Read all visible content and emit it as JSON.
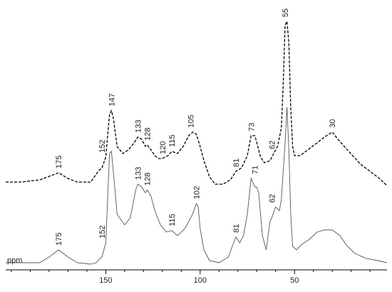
{
  "chart_data": {
    "type": "line",
    "xlabel": "ppm",
    "xlim": [
      203,
      1
    ],
    "ylim": [
      0,
      360
    ],
    "xticks": [
      150,
      100,
      50
    ],
    "xminorticks": [
      200,
      190,
      180,
      170,
      160,
      140,
      130,
      120,
      110,
      90,
      80,
      70,
      60,
      40,
      30,
      20,
      10
    ],
    "series": [
      {
        "color": "#000000",
        "dash": true,
        "x": [
          203,
          195,
          185,
          178,
          175,
          170,
          165,
          158,
          154,
          152,
          150,
          148,
          147,
          146,
          144,
          141,
          138,
          135,
          133,
          131,
          129,
          128,
          126,
          124,
          122,
          120,
          117,
          115,
          112,
          109,
          106,
          104,
          102,
          100,
          98,
          95,
          92,
          88,
          84,
          81,
          78,
          75,
          73,
          71,
          70,
          68,
          66,
          63,
          61,
          59,
          57,
          56,
          55,
          54,
          53,
          52,
          51,
          50,
          47,
          43,
          38,
          33,
          30,
          27,
          22,
          15,
          10,
          5,
          1
        ],
        "values": [
          123,
          123,
          126,
          133,
          136,
          128,
          123,
          123,
          138,
          143,
          158,
          218,
          223,
          213,
          173,
          163,
          168,
          178,
          186,
          183,
          173,
          175,
          168,
          160,
          156,
          156,
          160,
          166,
          163,
          173,
          188,
          193,
          190,
          173,
          153,
          130,
          120,
          120,
          126,
          138,
          143,
          160,
          188,
          188,
          178,
          158,
          150,
          153,
          163,
          173,
          198,
          258,
          343,
          348,
          318,
          228,
          173,
          160,
          160,
          168,
          178,
          188,
          193,
          183,
          168,
          148,
          138,
          128,
          118
        ],
        "peak_labels": [
          175,
          152,
          147,
          133,
          128,
          120,
          115,
          105,
          81,
          73,
          62,
          55,
          30
        ]
      },
      {
        "color": "#555555",
        "dash": false,
        "x": [
          203,
          185,
          180,
          175,
          170,
          165,
          158,
          155,
          153,
          152,
          150,
          148,
          147,
          146,
          144,
          140,
          137,
          134,
          133,
          131,
          129,
          128,
          126,
          124,
          121,
          118,
          115,
          112,
          108,
          104,
          102,
          101,
          100,
          98,
          95,
          90,
          85,
          82,
          81,
          79,
          77,
          75,
          73,
          71,
          70,
          69,
          67,
          65,
          63,
          62,
          60,
          58,
          57,
          55,
          54,
          53,
          52,
          51,
          49,
          46,
          42,
          38,
          34,
          30,
          26,
          22,
          18,
          12,
          6,
          1
        ],
        "values": [
          10,
          10,
          18,
          28,
          18,
          10,
          8,
          10,
          16,
          18,
          38,
          163,
          166,
          138,
          78,
          63,
          73,
          113,
          120,
          116,
          108,
          112,
          103,
          83,
          63,
          53,
          55,
          48,
          58,
          78,
          93,
          88,
          58,
          28,
          13,
          10,
          18,
          40,
          46,
          38,
          48,
          78,
          128,
          116,
          116,
          108,
          48,
          28,
          68,
          73,
          88,
          83,
          98,
          178,
          228,
          168,
          78,
          33,
          28,
          36,
          43,
          53,
          56,
          56,
          48,
          33,
          23,
          16,
          13,
          10
        ],
        "peak_labels": [
          175,
          152,
          133,
          128,
          115,
          102,
          81,
          71,
          62
        ]
      }
    ]
  }
}
